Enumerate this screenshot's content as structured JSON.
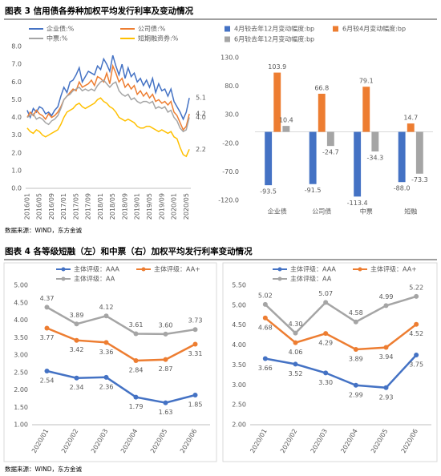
{
  "figures": [
    {
      "title": "图表 3  信用债各券种加权平均发行利率及变动情况",
      "source": "数据来源：WIND，东方金诚"
    },
    {
      "title": "图表 4  各等级短融（左）和中票（右）加权平均发行利率变动情况",
      "source": "数据来源：WIND，东方金诚"
    }
  ],
  "chart_data": [
    {
      "type": "line",
      "grid": false,
      "markers": false,
      "categories": [
        "2016/01",
        null,
        null,
        null,
        "2016/05",
        null,
        null,
        null,
        "2016/09",
        null,
        null,
        null,
        "2017/01",
        null,
        null,
        null,
        "2017/05",
        null,
        null,
        null,
        "2017/09",
        null,
        null,
        null,
        "2018/01",
        null,
        null,
        null,
        "2018/05",
        null,
        null,
        null,
        "2018/09",
        null,
        null,
        null,
        "2019/01",
        null,
        null,
        null,
        "2019/05",
        null,
        null,
        null,
        "2019/09",
        null,
        null,
        null,
        "2020/01",
        null,
        null,
        null,
        "2020/05",
        null
      ],
      "ylim": [
        0,
        8
      ],
      "yticks": [
        {
          "value": 0,
          "label": "0.0"
        },
        {
          "value": 1,
          "label": "1.0"
        },
        {
          "value": 2,
          "label": "2.0"
        },
        {
          "value": 3,
          "label": "3.0"
        },
        {
          "value": 4,
          "label": "4.0"
        },
        {
          "value": 5,
          "label": "5.0"
        },
        {
          "value": 6,
          "label": "6.0"
        },
        {
          "value": 7,
          "label": "7.0"
        },
        {
          "value": 8,
          "label": "8.0"
        }
      ],
      "series": [
        {
          "name": "企业债:%",
          "color": "#4472c4",
          "values": [
            4.4,
            4.0,
            4.5,
            4.3,
            4.6,
            4.5,
            4.2,
            4.3,
            4.1,
            4.4,
            4.6,
            5.2,
            5.7,
            5.4,
            6.0,
            6.1,
            6.4,
            6.8,
            6.0,
            6.3,
            6.6,
            6.5,
            6.4,
            6.9,
            6.7,
            7.3,
            7.0,
            6.6,
            7.5,
            6.9,
            6.4,
            7.0,
            6.2,
            6.8,
            6.3,
            6.5,
            6.0,
            6.2,
            5.8,
            6.1,
            5.7,
            6.2,
            5.4,
            5.9,
            5.5,
            5.6,
            5.2,
            5.6,
            4.9,
            4.6,
            4.3,
            3.9,
            4.3,
            5.1
          ],
          "value_labels": [
            null,
            null,
            null,
            null,
            null,
            null,
            null,
            null,
            null,
            null,
            null,
            null,
            null,
            null,
            null,
            null,
            null,
            null,
            null,
            null,
            null,
            null,
            null,
            null,
            null,
            null,
            null,
            null,
            null,
            null,
            null,
            null,
            null,
            null,
            null,
            null,
            null,
            null,
            null,
            null,
            null,
            null,
            null,
            null,
            null,
            null,
            null,
            null,
            null,
            null,
            null,
            null,
            null,
            "5.1"
          ]
        },
        {
          "name": "公司债:%",
          "color": "#ed7d31",
          "values": [
            4.0,
            4.3,
            4.1,
            4.4,
            4.2,
            4.1,
            3.9,
            4.2,
            4.0,
            4.1,
            4.3,
            4.6,
            5.0,
            5.2,
            5.4,
            5.6,
            5.5,
            6.0,
            5.7,
            5.8,
            5.9,
            6.1,
            5.8,
            6.3,
            6.2,
            6.0,
            6.5,
            5.9,
            6.9,
            6.5,
            6.0,
            6.2,
            5.7,
            5.9,
            5.6,
            5.8,
            5.3,
            5.5,
            5.2,
            5.4,
            5.1,
            5.3,
            4.9,
            5.0,
            4.8,
            4.9,
            4.7,
            4.9,
            4.3,
            4.1,
            3.7,
            3.3,
            3.5,
            4.2
          ],
          "value_labels": [
            null,
            null,
            null,
            null,
            null,
            null,
            null,
            null,
            null,
            null,
            null,
            null,
            null,
            null,
            null,
            null,
            null,
            null,
            null,
            null,
            null,
            null,
            null,
            null,
            null,
            null,
            null,
            null,
            null,
            null,
            null,
            null,
            null,
            null,
            null,
            null,
            null,
            null,
            null,
            null,
            null,
            null,
            null,
            null,
            null,
            null,
            null,
            null,
            null,
            null,
            null,
            null,
            null,
            "4.2"
          ]
        },
        {
          "name": "中票:%",
          "color": "#a5a5a5",
          "values": [
            4.0,
            4.1,
            4.2,
            3.9,
            4.0,
            3.9,
            3.7,
            3.6,
            3.8,
            3.9,
            4.1,
            4.5,
            5.0,
            5.2,
            5.3,
            5.5,
            5.6,
            5.7,
            5.5,
            5.6,
            5.5,
            5.6,
            5.5,
            5.8,
            6.0,
            6.1,
            5.9,
            5.7,
            5.9,
            6.0,
            5.5,
            5.3,
            5.2,
            5.3,
            5.0,
            5.1,
            4.9,
            4.8,
            4.9,
            4.9,
            4.8,
            4.9,
            4.5,
            4.6,
            4.5,
            4.6,
            4.3,
            4.4,
            4.0,
            3.8,
            3.4,
            3.2,
            3.3,
            4.0
          ],
          "value_labels": [
            null,
            null,
            null,
            null,
            null,
            null,
            null,
            null,
            null,
            null,
            null,
            null,
            null,
            null,
            null,
            null,
            null,
            null,
            null,
            null,
            null,
            null,
            null,
            null,
            null,
            null,
            null,
            null,
            null,
            null,
            null,
            null,
            null,
            null,
            null,
            null,
            null,
            null,
            null,
            null,
            null,
            null,
            null,
            null,
            null,
            null,
            null,
            null,
            null,
            null,
            null,
            null,
            null,
            "4.0"
          ]
        },
        {
          "name": "短期融资券:%",
          "color": "#ffc000",
          "values": [
            3.4,
            3.2,
            3.1,
            3.3,
            3.2,
            3.0,
            2.9,
            3.0,
            3.1,
            3.2,
            3.3,
            3.6,
            4.0,
            4.3,
            4.4,
            4.5,
            4.7,
            4.8,
            4.6,
            4.5,
            4.6,
            4.7,
            4.8,
            5.0,
            5.1,
            4.9,
            4.8,
            4.6,
            4.5,
            4.3,
            4.0,
            3.9,
            3.8,
            3.9,
            3.8,
            3.7,
            3.5,
            3.4,
            3.4,
            3.5,
            3.5,
            3.4,
            3.3,
            3.2,
            3.3,
            3.2,
            3.1,
            3.2,
            2.9,
            2.8,
            2.3,
            1.9,
            1.8,
            2.2
          ],
          "value_labels": [
            null,
            null,
            null,
            null,
            null,
            null,
            null,
            null,
            null,
            null,
            null,
            null,
            null,
            null,
            null,
            null,
            null,
            null,
            null,
            null,
            null,
            null,
            null,
            null,
            null,
            null,
            null,
            null,
            null,
            null,
            null,
            null,
            null,
            null,
            null,
            null,
            null,
            null,
            null,
            null,
            null,
            null,
            null,
            null,
            null,
            null,
            null,
            null,
            null,
            null,
            null,
            null,
            null,
            "2.2"
          ]
        }
      ]
    },
    {
      "type": "bar",
      "grid": false,
      "categories": [
        "企业债",
        "公司债",
        "中票",
        "短融"
      ],
      "ylim": [
        -120,
        130
      ],
      "yticks": [
        {
          "value": -120,
          "label": "-120.0"
        },
        {
          "value": -70,
          "label": "-70.0"
        },
        {
          "value": -20,
          "label": "-20.0"
        },
        {
          "value": 30,
          "label": "30.0"
        },
        {
          "value": 80,
          "label": "80.0"
        },
        {
          "value": 130,
          "label": "130.0"
        }
      ],
      "series": [
        {
          "name": "4月较去年12月变动幅度:bp",
          "color": "#4472c4",
          "values": [
            -93.5,
            -91.5,
            -113.4,
            -88.0
          ],
          "value_labels": [
            "-93.5",
            "-91.5",
            "-113.4",
            "-88.0"
          ]
        },
        {
          "name": "6月较4月变动幅度:bp",
          "color": "#ed7d31",
          "values": [
            103.9,
            66.8,
            79.1,
            14.7
          ],
          "value_labels": [
            "103.9",
            "66.8",
            "79.1",
            "14.7"
          ]
        },
        {
          "name": "6月较去年12月变动幅度:bp",
          "color": "#a5a5a5",
          "values": [
            10.4,
            -24.7,
            -34.3,
            -73.3
          ],
          "value_labels": [
            "10.4",
            "-24.7",
            "-34.3",
            "-73.3"
          ]
        }
      ]
    },
    {
      "type": "line",
      "grid": false,
      "markers": true,
      "categories": [
        "2020/01",
        "2020/02",
        "2020/03",
        "2020/04",
        "2020/05",
        "2020/06"
      ],
      "ylim": [
        1,
        5
      ],
      "yticks": [
        {
          "value": 1,
          "label": "1.00"
        },
        {
          "value": 1.5,
          "label": "1.50"
        },
        {
          "value": 2,
          "label": "2.00"
        },
        {
          "value": 2.5,
          "label": "2.50"
        },
        {
          "value": 3,
          "label": "3.00"
        },
        {
          "value": 3.5,
          "label": "3.50"
        },
        {
          "value": 4,
          "label": "4.00"
        },
        {
          "value": 4.5,
          "label": "4.50"
        },
        {
          "value": 5,
          "label": "5.00"
        }
      ],
      "series": [
        {
          "name": "主体评级：AAA",
          "color": "#4472c4",
          "values": [
            2.54,
            2.34,
            2.36,
            1.79,
            1.63,
            1.85
          ],
          "value_labels": [
            "2.54",
            "2.34",
            "2.36",
            "1.79",
            "1.63",
            "1.85"
          ]
        },
        {
          "name": "主体评级：AA+",
          "color": "#ed7d31",
          "values": [
            3.77,
            3.42,
            3.36,
            2.84,
            2.87,
            3.31
          ],
          "value_labels": [
            "3.77",
            "3.42",
            "3.36",
            "2.84",
            "2.87",
            "3.31"
          ]
        },
        {
          "name": "主体评级：AA",
          "color": "#a5a5a5",
          "values": [
            4.37,
            3.89,
            4.12,
            3.61,
            3.6,
            3.73
          ],
          "value_labels": [
            "4.37",
            "3.89",
            "4.12",
            "3.61",
            "3.60",
            "3.73"
          ]
        }
      ]
    },
    {
      "type": "line",
      "grid": false,
      "markers": true,
      "categories": [
        "2020/01",
        "2020/02",
        "2020/03",
        "2020/04",
        "2020/05",
        "2020/06"
      ],
      "ylim": [
        2,
        5.5
      ],
      "yticks": [
        {
          "value": 2,
          "label": "2.00"
        },
        {
          "value": 2.5,
          "label": "2.50"
        },
        {
          "value": 3,
          "label": "3.00"
        },
        {
          "value": 3.5,
          "label": "3.50"
        },
        {
          "value": 4,
          "label": "4.00"
        },
        {
          "value": 4.5,
          "label": "4.50"
        },
        {
          "value": 5,
          "label": "5.00"
        },
        {
          "value": 5.5,
          "label": "5.50"
        }
      ],
      "series": [
        {
          "name": "主体评级：AAA",
          "color": "#4472c4",
          "values": [
            3.66,
            3.52,
            3.3,
            2.99,
            2.93,
            3.75
          ],
          "value_labels": [
            "3.66",
            "3.52",
            "3.30",
            "2.99",
            "2.93",
            "3.75"
          ]
        },
        {
          "name": "主体评级：AA+",
          "color": "#ed7d31",
          "values": [
            4.68,
            4.06,
            4.29,
            3.89,
            3.94,
            4.52
          ],
          "value_labels": [
            "4.68",
            "4.06",
            "4.29",
            "3.89",
            "3.94",
            "4.52"
          ]
        },
        {
          "name": "主体评级：AA",
          "color": "#a5a5a5",
          "values": [
            5.02,
            4.3,
            5.07,
            4.58,
            4.99,
            5.22
          ],
          "value_labels": [
            "5.02",
            "4.30",
            "5.07",
            "4.58",
            "4.99",
            "5.22"
          ]
        }
      ]
    }
  ]
}
